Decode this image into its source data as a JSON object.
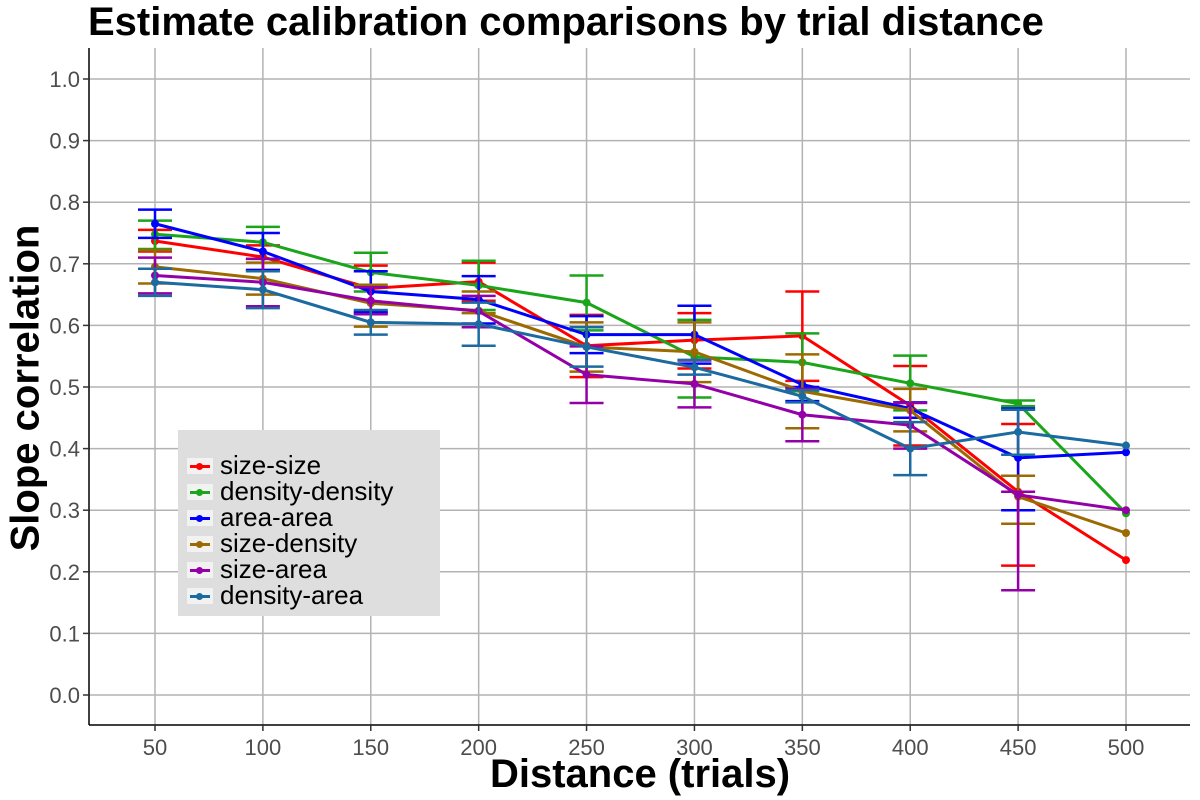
{
  "chart_data": {
    "type": "line",
    "title": "Estimate calibration comparisons by trial distance",
    "xlabel": "Distance (trials)",
    "ylabel": "Slope correlation",
    "x": [
      50,
      100,
      150,
      200,
      250,
      300,
      350,
      400,
      450,
      500
    ],
    "x_ticks": [
      "50",
      "100",
      "150",
      "200",
      "250",
      "300",
      "350",
      "400",
      "450",
      "500"
    ],
    "y_ticks": [
      "0.0",
      "0.1",
      "0.2",
      "0.3",
      "0.4",
      "0.5",
      "0.6",
      "0.7",
      "0.8",
      "0.9",
      "1.0"
    ],
    "ylim": [
      -0.05,
      1.05
    ],
    "grid": true,
    "legend_position": "bottom-left inside",
    "series": [
      {
        "name": "size-size",
        "color": "#ff0000",
        "values": [
          0.737,
          0.711,
          0.66,
          0.671,
          0.567,
          0.576,
          0.583,
          0.47,
          0.33,
          0.219
        ],
        "err_low": [
          0.72,
          0.69,
          0.62,
          0.64,
          0.516,
          0.53,
          0.51,
          0.405,
          0.21,
          null
        ],
        "err_high": [
          0.755,
          0.73,
          0.697,
          0.702,
          0.617,
          0.62,
          0.655,
          0.534,
          0.44,
          null
        ]
      },
      {
        "name": "density-density",
        "color": "#1aa51a",
        "values": [
          0.748,
          0.735,
          0.686,
          0.665,
          0.637,
          0.549,
          0.54,
          0.506,
          0.473,
          0.295
        ],
        "err_low": [
          0.724,
          0.708,
          0.655,
          0.625,
          0.592,
          0.483,
          0.493,
          0.462,
          0.469,
          null
        ],
        "err_high": [
          0.77,
          0.76,
          0.718,
          0.705,
          0.681,
          0.609,
          0.587,
          0.551,
          0.478,
          null
        ]
      },
      {
        "name": "area-area",
        "color": "#0000ff",
        "values": [
          0.765,
          0.72,
          0.655,
          0.642,
          0.585,
          0.585,
          0.504,
          0.465,
          0.385,
          0.394
        ],
        "err_low": [
          0.742,
          0.69,
          0.622,
          0.603,
          0.555,
          0.538,
          0.477,
          0.45,
          0.3,
          null
        ],
        "err_high": [
          0.788,
          0.75,
          0.688,
          0.68,
          0.615,
          0.632,
          0.5,
          0.475,
          0.465,
          null
        ]
      },
      {
        "name": "size-density",
        "color": "#9c6a00",
        "values": [
          0.695,
          0.676,
          0.636,
          0.624,
          0.565,
          0.557,
          0.493,
          0.462,
          0.322,
          0.263
        ],
        "err_low": [
          0.668,
          0.65,
          0.598,
          0.62,
          0.525,
          0.508,
          0.433,
          0.428,
          0.278,
          null
        ],
        "err_high": [
          0.722,
          0.702,
          0.666,
          0.655,
          0.605,
          0.605,
          0.553,
          0.497,
          0.356,
          null
        ]
      },
      {
        "name": "size-area",
        "color": "#9400a8",
        "values": [
          0.681,
          0.67,
          0.64,
          0.623,
          0.52,
          0.505,
          0.455,
          0.438,
          0.325,
          0.3
        ],
        "err_low": [
          0.652,
          0.631,
          0.618,
          0.597,
          0.474,
          0.467,
          0.412,
          0.4,
          0.17,
          null
        ],
        "err_high": [
          0.71,
          0.708,
          0.662,
          0.648,
          0.566,
          0.543,
          0.497,
          0.474,
          0.33,
          null
        ]
      },
      {
        "name": "density-area",
        "color": "#1b6aa0",
        "values": [
          0.67,
          0.658,
          0.605,
          0.602,
          0.565,
          0.532,
          0.485,
          0.4,
          0.427,
          0.405
        ],
        "err_low": [
          0.648,
          0.628,
          0.585,
          0.567,
          0.533,
          0.52,
          0.475,
          0.357,
          0.39,
          null
        ],
        "err_high": [
          0.692,
          0.688,
          0.625,
          0.637,
          0.597,
          0.544,
          0.495,
          0.443,
          0.463,
          null
        ]
      }
    ]
  }
}
